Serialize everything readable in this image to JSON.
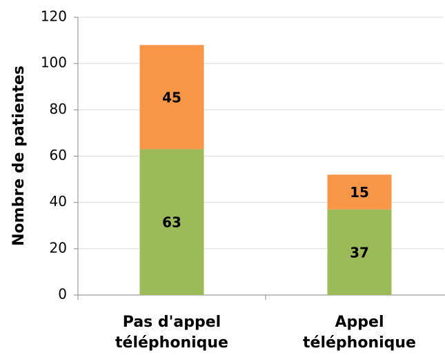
{
  "chart_data": {
    "type": "stacked_bar",
    "y_label": "Nombre de patientes",
    "categories": [
      "Pas d'appel\ntéléphonique",
      "Appel\ntéléphonique"
    ],
    "series": [
      {
        "color": "#9bbb59",
        "values": [
          63,
          37
        ]
      },
      {
        "color": "#f79646",
        "values": [
          45,
          15
        ]
      }
    ],
    "ylim": [
      0,
      120
    ],
    "yticks": [
      0,
      20,
      40,
      60,
      80,
      100,
      120
    ],
    "grid": true
  }
}
